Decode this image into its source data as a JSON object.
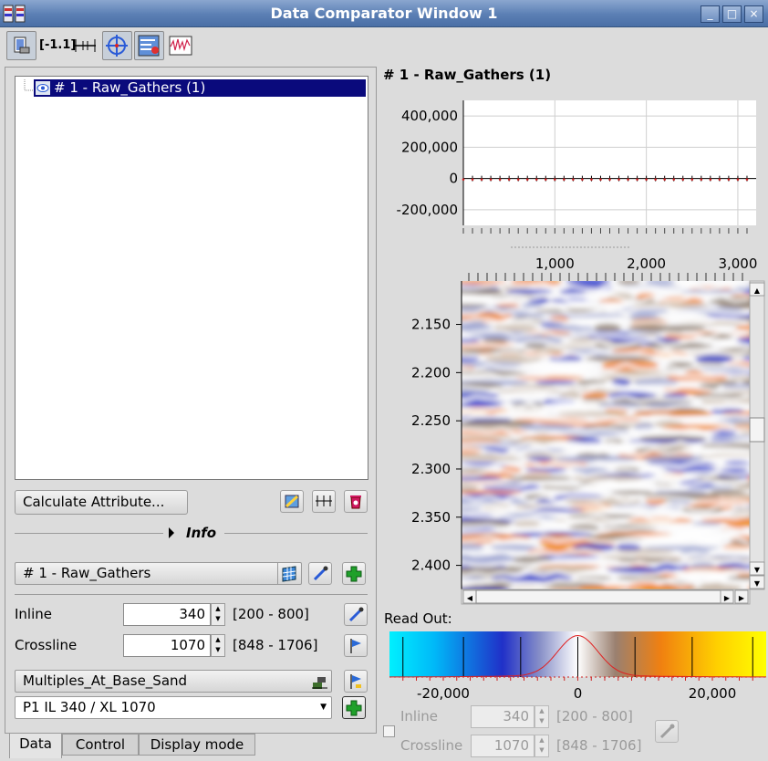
{
  "window": {
    "title": "Data Comparator Window 1",
    "controls": [
      "_",
      "□",
      "×"
    ]
  },
  "toolbar": {
    "zoom_text": "[-1.1]",
    "buttons": [
      "display-props",
      "distance-ratio",
      "fit-width",
      "crosshair",
      "swap-display",
      "trace-display"
    ]
  },
  "left": {
    "tree_item": "# 1 - Raw_Gathers (1)",
    "calc_button": "Calculate Attribute...",
    "info_label": "Info",
    "dataset_combo": "# 1 - Raw_Gathers",
    "inline_label": "Inline",
    "inline_value": "340",
    "inline_range": "[200 - 800]",
    "crossline_label": "Crossline",
    "crossline_value": "1070",
    "crossline_range": "[848 - 1706]",
    "horizon_combo": "Multiples_At_Base_Sand",
    "position_combo": "P1 IL 340 / XL 1070"
  },
  "tabs": [
    "Data",
    "Control",
    "Display mode"
  ],
  "right": {
    "title": "# 1 - Raw_Gathers (1)",
    "readout_label": "Read Out:",
    "bottom_inline_label": "Inline",
    "bottom_inline_value": "340",
    "bottom_inline_range": "[200 - 800]",
    "bottom_crossline_label": "Crossline",
    "bottom_crossline_value": "1070",
    "bottom_crossline_range": "[848 - 1706]"
  },
  "chart_data": [
    {
      "type": "line",
      "y_ticks": [
        "400,000",
        "200,000",
        "0",
        "-200,000"
      ],
      "x_ticks": [
        "1,000",
        "2,000",
        "3,000"
      ],
      "ylim": [
        -300000,
        500000
      ],
      "xlim": [
        0,
        3200
      ]
    },
    {
      "type": "heatmap",
      "y_ticks": [
        "2.150",
        "2.200",
        "2.250",
        "2.300",
        "2.350",
        "2.400"
      ],
      "ylim": [
        2.105,
        2.425
      ]
    },
    {
      "type": "area",
      "x_ticks": [
        "-20,000",
        "0",
        "20,000"
      ],
      "xlim": [
        -28000,
        28000
      ]
    }
  ]
}
